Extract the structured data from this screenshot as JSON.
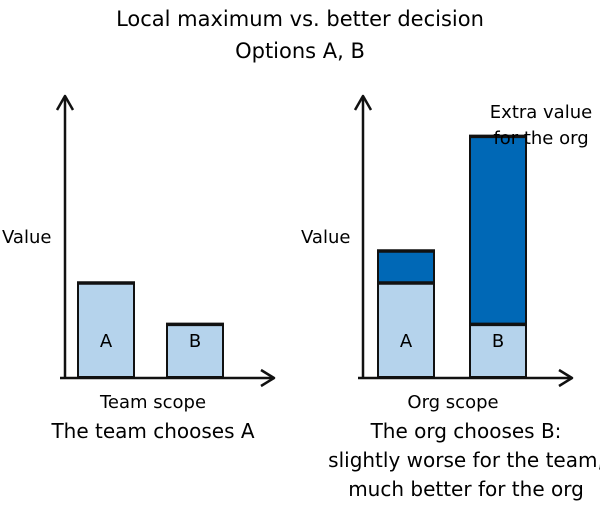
{
  "title": "Local maximum vs. better decision",
  "subtitle": "Options A, B",
  "colors": {
    "light_bar": "#b5d3ec",
    "dark_bar": "#0068b6",
    "stroke": "#111111"
  },
  "chart_data": [
    {
      "type": "bar",
      "ylabel": "Value",
      "xlabel": "Team scope",
      "caption": "The team chooses A",
      "categories": [
        "A",
        "B"
      ],
      "series": [
        {
          "values": [
            1.0,
            0.56
          ]
        }
      ]
    },
    {
      "type": "bar",
      "stacked": true,
      "ylabel": "Value",
      "xlabel": "Org scope",
      "caption_lines": [
        "The org chooses B:",
        "slightly worse for the team,",
        "much better for the org"
      ],
      "categories": [
        "A",
        "B"
      ],
      "series": [
        {
          "values": [
            1.0,
            0.56
          ]
        },
        {
          "values": [
            0.34,
            2.0
          ]
        }
      ],
      "annotation_lines": [
        "Extra value",
        "for the org"
      ]
    }
  ]
}
